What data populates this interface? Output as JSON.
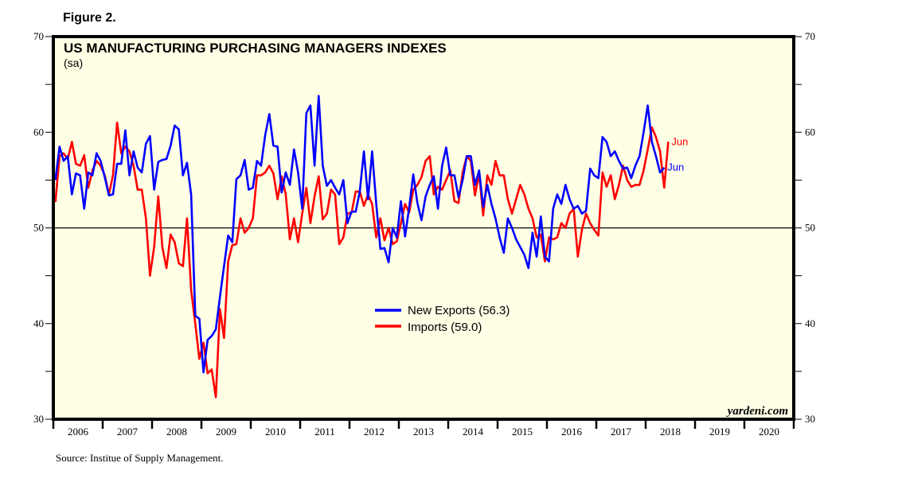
{
  "figure_label": "Figure 2.",
  "source": "Source: Institue of Supply Management.",
  "chart_data": {
    "type": "line",
    "title": "US MANUFACTURING PURCHASING MANAGERS INDEXES",
    "subtitle": "(sa)",
    "watermark": "yardeni.com",
    "xlabel": "",
    "ylabel": "",
    "ylim": [
      30,
      70
    ],
    "yticks": [
      30,
      40,
      50,
      60,
      70
    ],
    "reference_line": 50,
    "x_range_years": [
      2006,
      2021
    ],
    "x_tick_labels": [
      "2006",
      "2007",
      "2008",
      "2009",
      "2010",
      "2011",
      "2012",
      "2013",
      "2014",
      "2015",
      "2016",
      "2017",
      "2018",
      "2019",
      "2020"
    ],
    "x_start": "2006-01",
    "frequency": "monthly",
    "legend_position": "center",
    "background": "#ffffe6",
    "series": [
      {
        "name": "New Exports",
        "legend": "New Exports (56.3)",
        "end_label": "Jun",
        "color": "#0000ff",
        "values": [
          55.0,
          58.5,
          57.0,
          57.5,
          53.5,
          55.7,
          55.5,
          52.0,
          55.8,
          55.5,
          57.8,
          57.0,
          55.3,
          53.4,
          53.5,
          56.7,
          56.7,
          60.2,
          55.5,
          58.0,
          56.3,
          55.8,
          58.8,
          59.6,
          54.0,
          56.9,
          57.1,
          57.2,
          58.6,
          60.7,
          60.3,
          55.5,
          56.8,
          53.5,
          40.8,
          40.5,
          34.9,
          38.3,
          38.7,
          39.4,
          42.8,
          46.0,
          49.2,
          48.5,
          55.1,
          55.5,
          57.1,
          54.0,
          54.2,
          57.0,
          56.5,
          59.7,
          61.9,
          58.6,
          58.5,
          53.7,
          55.8,
          54.5,
          58.2,
          55.8,
          52.0,
          62.0,
          62.8,
          56.5,
          63.8,
          56.5,
          54.4,
          55.0,
          54.2,
          53.5,
          55.0,
          50.5,
          51.7,
          51.7,
          53.8,
          58.0,
          53.0,
          58.0,
          52.5,
          47.8,
          47.9,
          46.4,
          50.0,
          49.0,
          52.8,
          49.1,
          52.1,
          55.6,
          52.6,
          50.8,
          53.3,
          54.5,
          55.4,
          52.0,
          56.5,
          58.4,
          55.5,
          55.5,
          53.2,
          55.0,
          57.5,
          57.5,
          54.5,
          56.0,
          52.2,
          54.5,
          52.5,
          51.0,
          49.0,
          47.4,
          51.0,
          50.0,
          48.8,
          48.0,
          47.2,
          45.8,
          49.5,
          47.0,
          51.2,
          47.0,
          46.5,
          52.0,
          53.5,
          52.5,
          54.5,
          53.0,
          52.0,
          52.3,
          51.5,
          51.8,
          56.2,
          55.5,
          55.2,
          59.5,
          59.0,
          57.5,
          58.0,
          57.0,
          56.2,
          56.3,
          55.2,
          56.5,
          57.5,
          60.0,
          62.8,
          59.0,
          57.5,
          55.8,
          56.3
        ]
      },
      {
        "name": "Imports",
        "legend": "Imports (59.0)",
        "end_label": "Jun",
        "color": "#ff0000",
        "values": [
          52.7,
          57.5,
          57.8,
          57.2,
          59.0,
          56.7,
          56.5,
          57.6,
          54.2,
          56.0,
          57.0,
          56.5,
          55.5,
          53.5,
          55.5,
          61.0,
          57.8,
          58.5,
          58.0,
          56.5,
          54.0,
          54.0,
          51.0,
          45.0,
          48.0,
          53.3,
          48.0,
          45.8,
          49.3,
          48.5,
          46.3,
          46.0,
          51.0,
          43.5,
          40.0,
          36.3,
          38.0,
          34.8,
          35.2,
          32.3,
          41.5,
          38.5,
          46.5,
          48.2,
          48.3,
          51.0,
          49.5,
          50.0,
          51.0,
          55.5,
          55.5,
          55.8,
          56.5,
          55.7,
          53.0,
          55.4,
          53.5,
          48.8,
          51.0,
          48.5,
          51.5,
          54.2,
          50.5,
          53.3,
          55.4,
          50.9,
          51.5,
          54.0,
          53.5,
          48.3,
          49.0,
          51.5,
          51.6,
          53.8,
          53.8,
          52.3,
          53.5,
          52.5,
          49.0,
          51.0,
          48.7,
          50.0,
          48.3,
          48.6,
          50.5,
          52.5,
          51.6,
          54.0,
          54.5,
          55.3,
          57.0,
          57.5,
          53.5,
          54.3,
          54.0,
          55.0,
          56.0,
          52.8,
          52.6,
          55.8,
          57.5,
          57.0,
          53.4,
          55.7,
          51.3,
          55.5,
          54.5,
          57.0,
          55.5,
          55.5,
          53.0,
          51.5,
          53.0,
          54.5,
          53.5,
          52.0,
          51.0,
          49.0,
          49.3,
          46.5,
          49.0,
          48.8,
          49.0,
          50.5,
          50.0,
          51.5,
          52.0,
          47.0,
          49.8,
          51.5,
          50.5,
          49.8,
          49.2,
          55.8,
          54.3,
          55.5,
          53.0,
          54.5,
          56.5,
          55.0,
          54.3,
          54.5,
          54.5,
          56.0,
          58.2,
          60.5,
          59.5,
          58.0,
          54.2,
          59.0
        ]
      }
    ]
  }
}
